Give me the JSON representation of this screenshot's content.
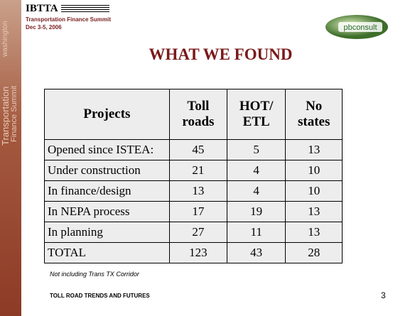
{
  "sidebar": {
    "city": "washington",
    "line1": "Transportation",
    "line2": "Finance Summit"
  },
  "header": {
    "org": "IBTTA",
    "event": "Transportation Finance Summit",
    "dates": "Dec 3-5, 2006",
    "logo": "pbconsult"
  },
  "title": "WHAT WE FOUND",
  "table": {
    "columns": [
      "Projects",
      "Toll roads",
      "HOT/ ETL",
      "No states"
    ],
    "rows": [
      [
        "Opened since ISTEA:",
        45,
        5,
        13
      ],
      [
        "Under construction",
        21,
        4,
        10
      ],
      [
        "In finance/design",
        13,
        4,
        10
      ],
      [
        "In NEPA process",
        17,
        19,
        13
      ],
      [
        "In planning",
        27,
        11,
        13
      ],
      [
        "TOTAL",
        123,
        43,
        28
      ]
    ]
  },
  "note": "Not including Trans TX Corridor",
  "footer": {
    "text": "TOLL ROAD TRENDS AND FUTURES",
    "page": 3
  }
}
